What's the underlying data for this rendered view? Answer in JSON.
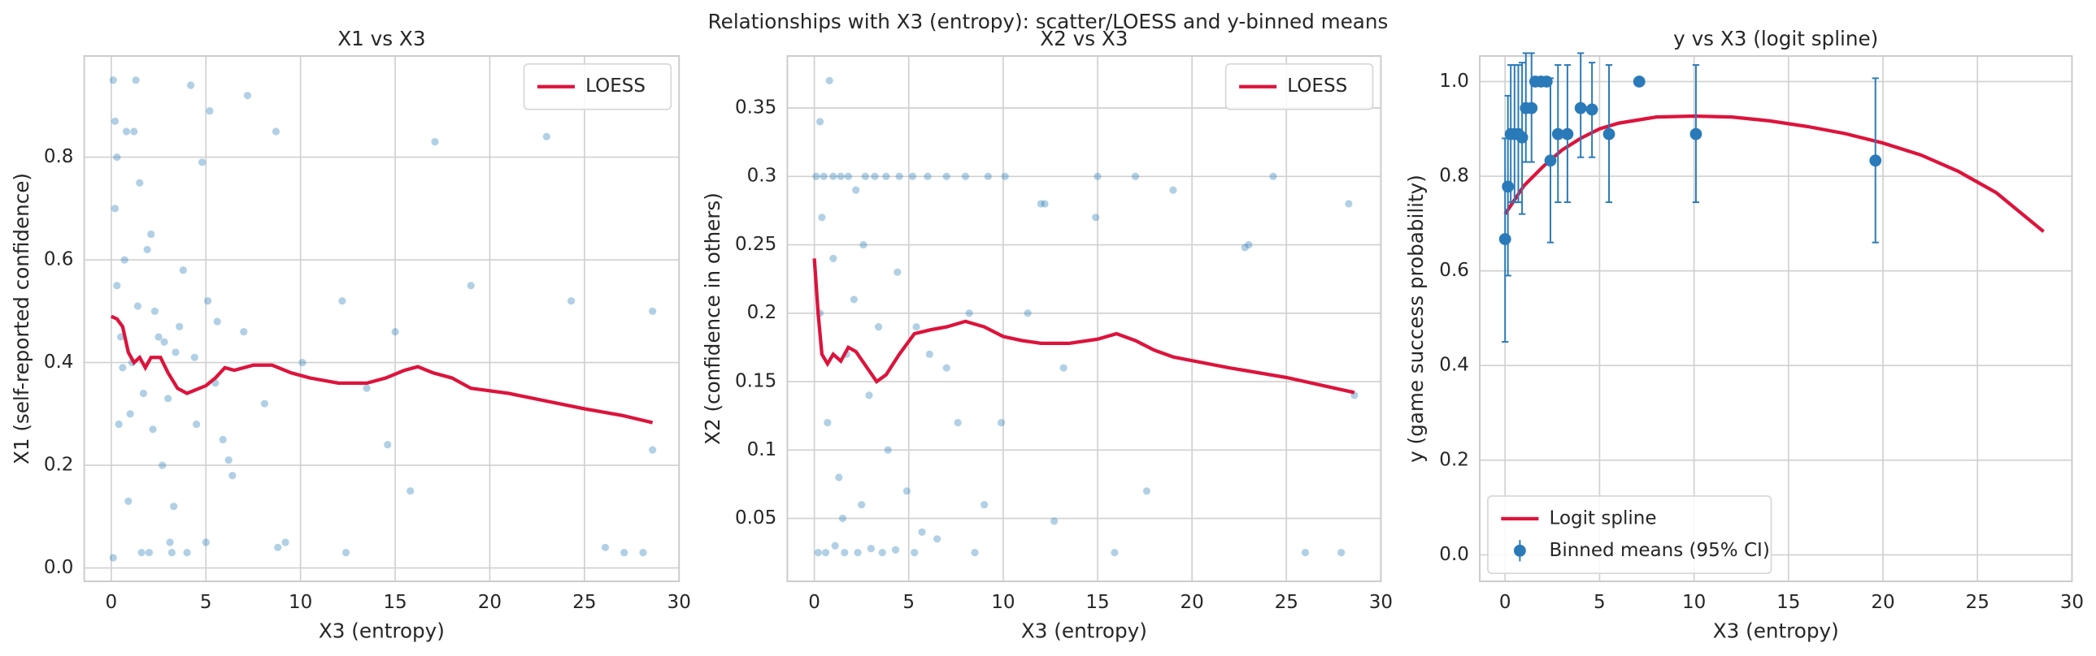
{
  "title": "Relationships with X3 (entropy): scatter/LOESS and y-binned means",
  "chart_data": [
    {
      "type": "scatter",
      "title": "X1 vs X3",
      "xlabel": "X3 (entropy)",
      "ylabel": "X1 (self-reported confidence)",
      "xlim": [
        -1.43,
        30
      ],
      "ylim": [
        -0.026,
        0.997
      ],
      "xticks": [
        0,
        5,
        10,
        15,
        20,
        25,
        30
      ],
      "yticks": [
        {
          "value": 0,
          "label": "0.0"
        },
        0.2,
        0.4,
        0.6,
        0.8
      ],
      "grid": true,
      "legend": "upper right",
      "series": [
        {
          "mode": "markers",
          "color": "#1f77b4",
          "x": [
            0.1,
            0.2,
            0.3,
            0.5,
            0.8,
            1.0,
            1.3,
            1.6,
            1.9,
            2.3,
            2.7,
            3.1,
            3.6,
            4.2,
            4.8,
            5.2,
            5.9,
            6.4,
            7.2,
            8.1,
            8.7,
            9.2,
            10.1,
            12.2,
            12.4,
            13.5,
            14.6,
            15.0,
            15.8,
            17.1,
            19.0,
            23.0,
            24.3,
            26.1,
            27.1,
            28.1,
            28.6,
            0.1,
            0.4,
            0.7,
            1.1,
            1.5,
            2.0,
            2.5,
            3.0,
            3.4,
            4.0,
            4.5,
            5.1,
            5.6,
            6.2,
            7.0,
            8.8,
            0.2,
            0.6,
            0.9,
            1.2,
            1.7,
            2.2,
            2.8,
            3.3,
            3.8,
            4.4,
            5.0,
            5.5,
            0.3,
            1.4,
            2.1,
            3.2,
            28.6
          ],
          "values": [
            0.95,
            0.87,
            0.55,
            0.45,
            0.85,
            0.3,
            0.95,
            0.03,
            0.62,
            0.5,
            0.2,
            0.05,
            0.47,
            0.94,
            0.79,
            0.89,
            0.25,
            0.18,
            0.92,
            0.32,
            0.85,
            0.05,
            0.4,
            0.52,
            0.03,
            0.35,
            0.24,
            0.46,
            0.15,
            0.83,
            0.55,
            0.84,
            0.52,
            0.04,
            0.03,
            0.03,
            0.23,
            0.02,
            0.28,
            0.6,
            0.4,
            0.75,
            0.03,
            0.45,
            0.33,
            0.42,
            0.03,
            0.28,
            0.52,
            0.48,
            0.21,
            0.46,
            0.04,
            0.7,
            0.39,
            0.13,
            0.85,
            0.34,
            0.27,
            0.44,
            0.12,
            0.58,
            0.41,
            0.05,
            0.36,
            0.8,
            0.51,
            0.65,
            0.03,
            0.5
          ]
        },
        {
          "mode": "line",
          "name": "LOESS",
          "color": "#dc143c",
          "x": [
            0,
            0.3,
            0.6,
            0.9,
            1.2,
            1.5,
            1.8,
            2.1,
            2.6,
            3,
            3.5,
            4,
            5,
            5.5,
            6,
            6.5,
            7.5,
            8.5,
            9.5,
            10.5,
            12,
            13.5,
            14.5,
            15.5,
            16.2,
            17,
            18,
            19,
            21,
            23,
            25,
            27,
            28.6
          ],
          "values": [
            0.49,
            0.485,
            0.47,
            0.42,
            0.4,
            0.41,
            0.39,
            0.41,
            0.41,
            0.38,
            0.35,
            0.34,
            0.355,
            0.37,
            0.39,
            0.385,
            0.395,
            0.395,
            0.38,
            0.37,
            0.36,
            0.36,
            0.37,
            0.385,
            0.392,
            0.38,
            0.37,
            0.35,
            0.34,
            0.325,
            0.31,
            0.297,
            0.283
          ]
        }
      ]
    },
    {
      "type": "scatter",
      "title": "X2 vs X3",
      "xlabel": "X3 (entropy)",
      "ylabel": "X2 (confidence in others)",
      "xlim": [
        -1.43,
        30
      ],
      "ylim": [
        0.004,
        0.388
      ],
      "xticks": [
        0,
        5,
        10,
        15,
        20,
        25,
        30
      ],
      "yticks": [
        0.05,
        0.1,
        0.15,
        0.2,
        0.25,
        0.3,
        0.35
      ],
      "grid": true,
      "legend": "upper right",
      "series": [
        {
          "mode": "markers",
          "color": "#1f77b4",
          "x": [
            0.1,
            0.3,
            0.5,
            0.8,
            1.0,
            1.4,
            1.8,
            2.2,
            2.7,
            3.2,
            3.8,
            4.5,
            5.2,
            6.0,
            7.0,
            8.0,
            9.2,
            10.1,
            12.0,
            15.0,
            17.0,
            19.0,
            23.0,
            24.3,
            28.3,
            0.2,
            0.6,
            1.1,
            1.6,
            2.3,
            3.0,
            3.6,
            4.3,
            5.3,
            6.5,
            8.5,
            12.7,
            15.9,
            26.0,
            27.9,
            0.3,
            0.7,
            1.0,
            1.3,
            1.7,
            2.1,
            2.5,
            2.9,
            3.4,
            3.9,
            4.4,
            4.9,
            5.4,
            6.1,
            7.0,
            7.6,
            8.2,
            9.0,
            9.9,
            11.3,
            12.2,
            13.2,
            14.9,
            17.6,
            22.8,
            28.6,
            0.4,
            1.5,
            2.6,
            5.7
          ],
          "values": [
            0.3,
            0.34,
            0.3,
            0.37,
            0.3,
            0.3,
            0.3,
            0.29,
            0.3,
            0.3,
            0.3,
            0.3,
            0.3,
            0.3,
            0.3,
            0.3,
            0.3,
            0.3,
            0.28,
            0.3,
            0.3,
            0.29,
            0.25,
            0.3,
            0.28,
            0.025,
            0.025,
            0.03,
            0.025,
            0.025,
            0.028,
            0.025,
            0.027,
            0.025,
            0.035,
            0.025,
            0.048,
            0.025,
            0.025,
            0.025,
            0.2,
            0.12,
            0.24,
            0.08,
            0.17,
            0.21,
            0.06,
            0.14,
            0.19,
            0.1,
            0.23,
            0.07,
            0.19,
            0.17,
            0.16,
            0.12,
            0.2,
            0.06,
            0.12,
            0.2,
            0.28,
            0.16,
            0.27,
            0.07,
            0.248,
            0.14,
            0.27,
            0.05,
            0.25,
            0.04
          ]
        },
        {
          "mode": "line",
          "name": "LOESS",
          "color": "#dc143c",
          "x": [
            0,
            0.2,
            0.4,
            0.7,
            1,
            1.4,
            1.8,
            2.2,
            2.8,
            3.3,
            3.8,
            4.5,
            5.3,
            6.2,
            7,
            8,
            9,
            10,
            11,
            12,
            13.5,
            15,
            16,
            17,
            18,
            19,
            22,
            25,
            28.6
          ],
          "values": [
            0.24,
            0.2,
            0.17,
            0.163,
            0.17,
            0.165,
            0.175,
            0.172,
            0.16,
            0.15,
            0.155,
            0.17,
            0.185,
            0.188,
            0.19,
            0.194,
            0.19,
            0.183,
            0.18,
            0.178,
            0.178,
            0.181,
            0.185,
            0.18,
            0.173,
            0.168,
            0.16,
            0.153,
            0.142
          ]
        }
      ]
    },
    {
      "type": "scatter",
      "title": "y vs X3 (logit spline)",
      "xlabel": "X3 (entropy)",
      "ylabel": "y (game success probability)",
      "xlim": [
        -1.34,
        30
      ],
      "ylim": [
        -0.056,
        1.054
      ],
      "xticks": [
        0,
        5,
        10,
        15,
        20,
        25,
        30
      ],
      "yticks": [
        {
          "value": 0,
          "label": "0.0"
        },
        0.2,
        0.4,
        0.6,
        0.8,
        {
          "value": 1,
          "label": "1.0"
        }
      ],
      "grid": true,
      "legend": "lower left",
      "series": [
        {
          "mode": "line",
          "name": "Logit spline",
          "color": "#dc143c",
          "x": [
            0,
            1,
            2,
            3,
            4,
            5,
            6,
            8,
            10,
            12,
            14,
            16,
            18,
            20,
            22,
            24,
            26,
            28.5
          ],
          "values": [
            0.72,
            0.78,
            0.82,
            0.855,
            0.88,
            0.9,
            0.912,
            0.925,
            0.927,
            0.925,
            0.917,
            0.905,
            0.89,
            0.87,
            0.845,
            0.81,
            0.765,
            0.683
          ]
        },
        {
          "mode": "errorbar",
          "name": "Binned means (95% CI)",
          "color": "#2a7ab9",
          "x": [
            0,
            0.15,
            0.3,
            0.5,
            0.7,
            0.9,
            1.1,
            1.4,
            1.6,
            1.9,
            2.2,
            2.4,
            2.8,
            3.3,
            4,
            4.6,
            5.5,
            7.1,
            10.1,
            19.6
          ],
          "values": [
            0.667,
            0.778,
            0.889,
            0.889,
            0.889,
            0.882,
            0.944,
            0.944,
            1,
            1,
            1,
            0.833,
            0.889,
            0.889,
            0.944,
            0.941,
            0.889,
            1,
            0.889,
            0.833
          ],
          "lower": [
            0.45,
            0.59,
            0.745,
            0.745,
            0.745,
            0.72,
            0.83,
            0.83,
            1,
            1,
            1,
            0.66,
            0.745,
            0.745,
            0.84,
            0.84,
            0.745,
            1,
            0.745,
            0.66
          ],
          "upper": [
            0.88,
            0.97,
            1.035,
            1.035,
            1.035,
            1.04,
            1.06,
            1.06,
            1,
            1,
            1,
            1.007,
            1.035,
            1.035,
            1.06,
            1.04,
            1.035,
            1,
            1.035,
            1.007
          ]
        }
      ]
    }
  ]
}
